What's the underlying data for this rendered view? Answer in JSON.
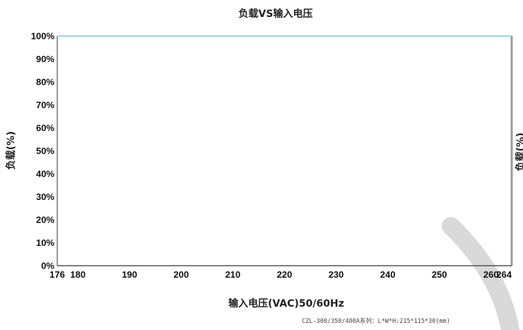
{
  "chart_data": {
    "type": "line",
    "title": "负载VS输入电压",
    "xlabel": "输入电压(VAC)50/60Hz",
    "ylabel": "负载(%)",
    "ylabel_right": "负载(%)",
    "x_ticks": [
      176,
      180,
      190,
      200,
      210,
      220,
      230,
      240,
      250,
      260,
      264
    ],
    "y_ticks": [
      "0%",
      "10%",
      "20%",
      "30%",
      "40%",
      "50%",
      "60%",
      "70%",
      "80%",
      "90%",
      "100%"
    ],
    "xlim": [
      176,
      264
    ],
    "ylim": [
      0,
      100
    ],
    "grid": false,
    "series": [
      {
        "x": [
          176,
          264
        ],
        "values": [
          100,
          100
        ],
        "color": "#9bd4e6"
      }
    ],
    "note": "CZL-300/350/400A系列：L*W*H:215*115*30(mm)"
  },
  "colors": {
    "axis": "#555555",
    "right_axis": "#999999",
    "line": "#9bd4e6",
    "watermark": "#d9d9d9"
  }
}
